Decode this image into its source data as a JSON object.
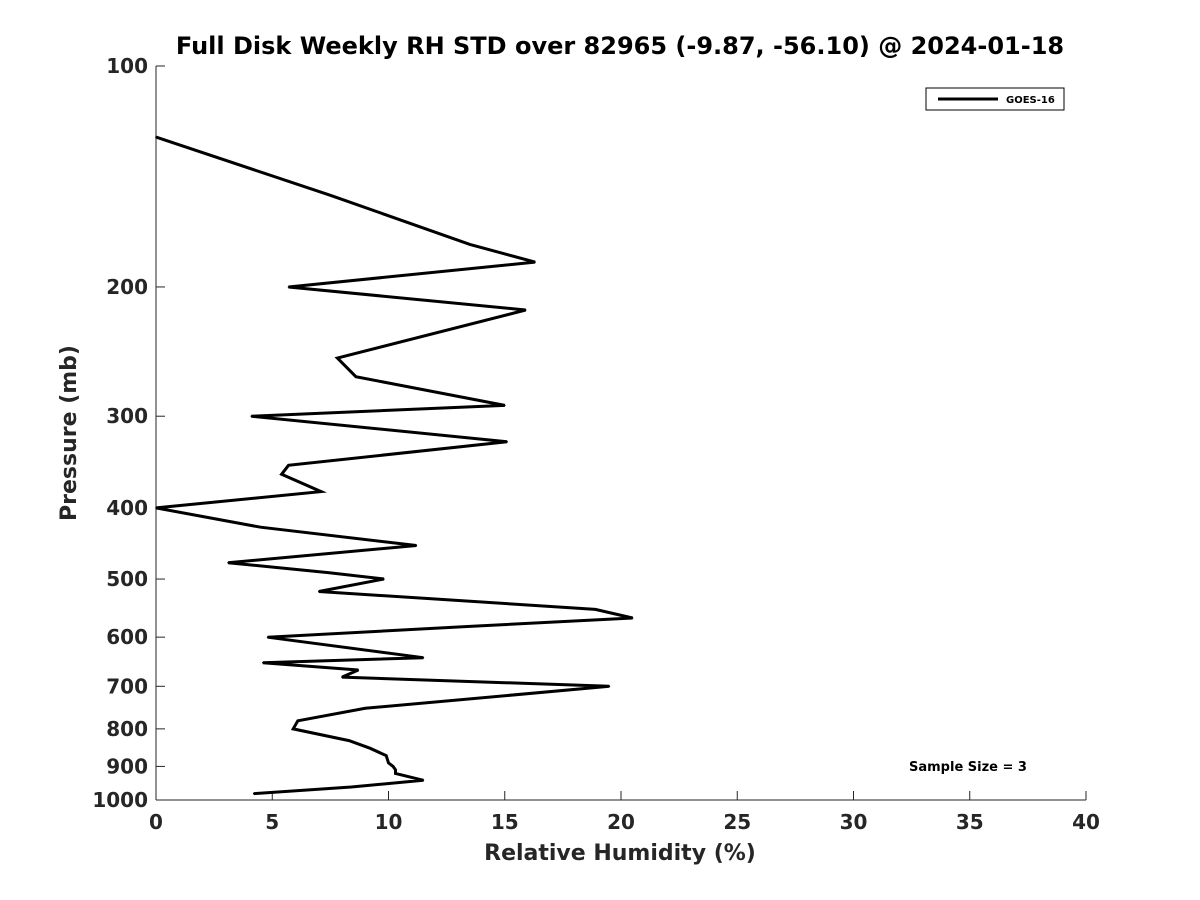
{
  "chart_data": {
    "type": "line",
    "title": "Full Disk Weekly RH STD over 82965 (-9.87, -56.10) @ 2024-01-18",
    "xlabel": "Relative Humidity (%)",
    "ylabel": "Pressure (mb)",
    "xlim": [
      0,
      40
    ],
    "ylim": [
      100,
      1000
    ],
    "yscale": "log",
    "y_reversed": true,
    "grid": false,
    "legend_placement": "top-right",
    "x_ticks": [
      "0",
      "5",
      "10",
      "15",
      "20",
      "25",
      "30",
      "35",
      "40"
    ],
    "y_ticks": [
      "100",
      "200",
      "300",
      "400",
      "500",
      "600",
      "700",
      "800",
      "900",
      "1000"
    ],
    "series": [
      {
        "name": "GOES-16",
        "color": "#000000",
        "points": [
          [
            0.0,
            125
          ],
          [
            7.5,
            150
          ],
          [
            13.5,
            175
          ],
          [
            16.3,
            185
          ],
          [
            5.7,
            200
          ],
          [
            15.9,
            215
          ],
          [
            7.8,
            250
          ],
          [
            8.6,
            265
          ],
          [
            15.0,
            290
          ],
          [
            4.1,
            300
          ],
          [
            15.1,
            325
          ],
          [
            5.7,
            350
          ],
          [
            5.4,
            360
          ],
          [
            7.1,
            380
          ],
          [
            0.0,
            400
          ],
          [
            4.5,
            425
          ],
          [
            11.2,
            450
          ],
          [
            3.1,
            475
          ],
          [
            7.4,
            490
          ],
          [
            9.8,
            500
          ],
          [
            7.0,
            520
          ],
          [
            18.9,
            550
          ],
          [
            20.5,
            565
          ],
          [
            13.5,
            580
          ],
          [
            4.8,
            600
          ],
          [
            11.5,
            640
          ],
          [
            4.6,
            650
          ],
          [
            8.7,
            665
          ],
          [
            8.0,
            680
          ],
          [
            19.5,
            700
          ],
          [
            9.0,
            750
          ],
          [
            6.1,
            780
          ],
          [
            5.9,
            800
          ],
          [
            8.3,
            830
          ],
          [
            9.2,
            850
          ],
          [
            9.9,
            870
          ],
          [
            10.0,
            890
          ],
          [
            10.2,
            900
          ],
          [
            10.3,
            910
          ],
          [
            10.3,
            920
          ],
          [
            11.5,
            940
          ],
          [
            8.4,
            960
          ],
          [
            4.2,
            980
          ]
        ]
      }
    ],
    "annotations": [
      "Sample Size = 3"
    ]
  }
}
